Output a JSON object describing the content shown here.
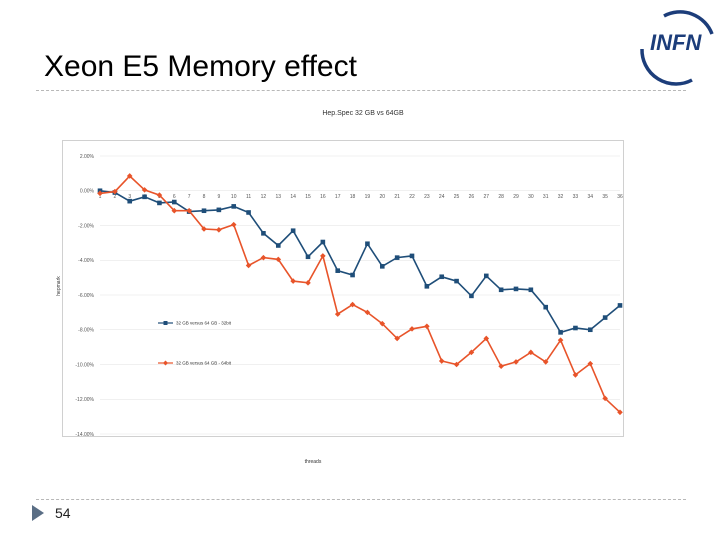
{
  "slide": {
    "title": "Xeon E5 Memory effect",
    "page_number": "54",
    "logo_text": "INFN"
  },
  "chart_data": {
    "type": "line",
    "title": "Hep.Spec 32 GB vs 64GB",
    "xlabel": "threads",
    "ylabel": "hepmark",
    "categories": [
      "1",
      "2",
      "3",
      "4",
      "5",
      "6",
      "7",
      "8",
      "9",
      "10",
      "11",
      "12",
      "13",
      "14",
      "15",
      "16",
      "17",
      "18",
      "19",
      "20",
      "21",
      "22",
      "23",
      "24",
      "25",
      "26",
      "27",
      "28",
      "29",
      "30",
      "31",
      "32",
      "33",
      "34",
      "35",
      "36"
    ],
    "ylim": [
      -14,
      2
    ],
    "yticks": [
      2,
      0,
      -2,
      -4,
      -6,
      -8,
      -10,
      -12,
      -14
    ],
    "ytick_labels": [
      "2.00%",
      "0.00%",
      "-2.00%",
      "-4.00%",
      "-6.00%",
      "-8.00%",
      "-10.00%",
      "-12.00%",
      "-14.00%"
    ],
    "grid": true,
    "legend_position": "center-left",
    "series": [
      {
        "name": "32 GB versus 64 GB - 32bit",
        "color": "#1f4e79",
        "marker": "square",
        "values": [
          0.0,
          -0.1,
          -0.6,
          -0.35,
          -0.7,
          -0.65,
          -1.2,
          -1.15,
          -1.1,
          -0.9,
          -1.25,
          -2.45,
          -3.15,
          -2.3,
          -3.8,
          -2.95,
          -4.6,
          -4.85,
          -3.05,
          -4.35,
          -3.85,
          -3.75,
          -5.5,
          -4.95,
          -5.2,
          -6.05,
          -4.9,
          -5.7,
          -5.65,
          -5.7,
          -6.7,
          -8.15,
          -7.9,
          -8.0,
          -7.3,
          -6.6
        ]
      },
      {
        "name": "32 GB versus 64 GB - 64bit",
        "color": "#e8542a",
        "marker": "diamond",
        "values": [
          -0.15,
          -0.05,
          0.85,
          0.05,
          -0.25,
          -1.15,
          -1.15,
          -2.2,
          -2.25,
          -1.95,
          -4.3,
          -3.85,
          -3.95,
          -5.2,
          -5.3,
          -3.75,
          -7.1,
          -6.55,
          -7.0,
          -7.65,
          -8.5,
          -7.95,
          -7.8,
          -9.8,
          -10.0,
          -9.3,
          -8.5,
          -10.1,
          -9.85,
          -9.3,
          -9.85,
          -8.6,
          -10.6,
          -9.95,
          -11.95,
          -12.75
        ]
      }
    ]
  }
}
